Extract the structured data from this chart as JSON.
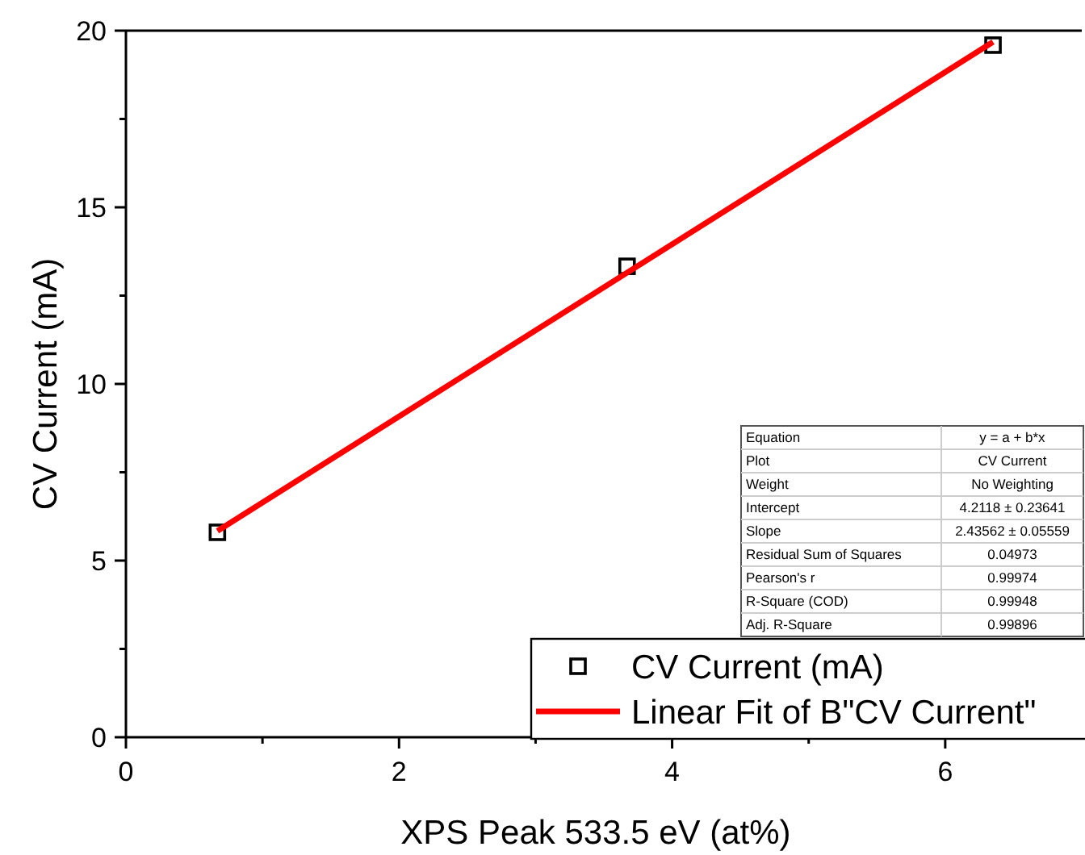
{
  "chart_data": {
    "type": "scatter",
    "xlabel": "XPS Peak 533.5 eV (at%)",
    "ylabel": "CV Current (mA)",
    "xlim": [
      0,
      7
    ],
    "ylim": [
      0,
      20
    ],
    "xticks": [
      0,
      {
        "value": 1,
        "label": null
      },
      2,
      {
        "value": 3,
        "label": null
      },
      4,
      {
        "value": 5,
        "label": null
      },
      6
    ],
    "yticks": [
      0,
      {
        "value": 2.5,
        "label": null
      },
      5,
      {
        "value": 7.5,
        "label": null
      },
      10,
      {
        "value": 12.5,
        "label": null
      },
      15,
      {
        "value": 17.5,
        "label": null
      },
      20
    ],
    "grid": false,
    "legend": "bottom right",
    "series": [
      {
        "name": "CV Current (mA)",
        "marker": "square",
        "color": "#000000",
        "x": [
          0.67,
          3.67,
          6.35
        ],
        "values": [
          5.8,
          13.33,
          19.59
        ]
      },
      {
        "name": "Linear Fit of B\"CV Current\"",
        "type": "line",
        "marker": "none",
        "line_style": "solid",
        "color": "#ff0000",
        "x": [
          0.67,
          6.35
        ],
        "values": [
          5.84,
          19.68
        ]
      }
    ],
    "annotations": [
      "Equation",
      "y = a + b*x",
      "Plot",
      "CV Current",
      "Weight",
      "No Weighting",
      "Intercept",
      "4.2118 ± 0.23641",
      "Slope",
      "2.43562 ± 0.05559",
      "Residual Sum of Squares",
      "0.04973",
      "Pearson's r",
      "0.99974",
      "R-Square (COD)",
      "0.99948",
      "Adj. R-Square",
      "0.99896"
    ]
  }
}
